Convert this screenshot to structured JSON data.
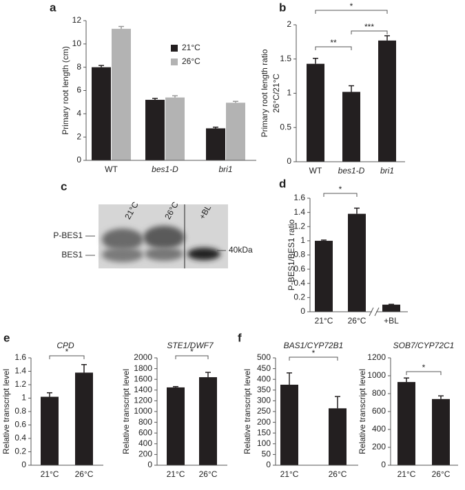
{
  "chart_data": [
    {
      "type": "bar",
      "panel": "a",
      "categories": [
        "WT",
        "bes1-D",
        "bri1"
      ],
      "series": [
        {
          "name": "21°C",
          "color": "#231f20",
          "values": [
            8.0,
            5.2,
            2.75
          ],
          "errors": [
            0.15,
            0.12,
            0.1
          ]
        },
        {
          "name": "26°C",
          "color": "#b3b3b3",
          "values": [
            11.3,
            5.4,
            4.95
          ],
          "errors": [
            0.2,
            0.15,
            0.12
          ]
        }
      ],
      "ylabel": [
        "Primary root length (cm)"
      ],
      "ylim": [
        0,
        12
      ],
      "yticks": [
        0,
        2,
        4,
        6,
        8,
        10,
        12
      ],
      "legend": "upper right"
    },
    {
      "type": "bar",
      "panel": "b",
      "categories": [
        "WT",
        "bes1-D",
        "bri1"
      ],
      "color": "#231f20",
      "values": [
        1.43,
        1.02,
        1.77
      ],
      "errors": [
        0.08,
        0.09,
        0.07
      ],
      "ylabel": [
        "Primary root length ratio",
        "26°C/21°C"
      ],
      "ylim": [
        0,
        2
      ],
      "yticks": [
        0,
        0.5,
        1,
        1.5,
        2
      ],
      "annotations": [
        {
          "text": "*",
          "between": [
            "WT",
            "bri1"
          ]
        },
        {
          "text": "**",
          "between": [
            "WT",
            "bes1-D"
          ]
        },
        {
          "text": "***",
          "between": [
            "bes1-D",
            "bri1"
          ]
        }
      ]
    },
    {
      "type": "bar",
      "panel": "d",
      "categories": [
        "21°C",
        "26°C",
        "+BL"
      ],
      "color": "#231f20",
      "values": [
        1.0,
        1.38,
        0.1
      ],
      "errors": [
        0.01,
        0.08,
        0.005
      ],
      "axis_break": true,
      "ylabel": [
        "P-BES1/BES1 ratio"
      ],
      "ylim": [
        0,
        1.6
      ],
      "yticks": [
        0,
        0.2,
        0.4,
        0.6,
        0.8,
        1,
        1.2,
        1.4,
        1.6
      ],
      "annotations": [
        {
          "text": "*",
          "between": [
            "21°C",
            "26°C"
          ]
        }
      ]
    },
    {
      "type": "bar",
      "panel": "e",
      "title": "CPD",
      "categories": [
        "21°C",
        "26°C"
      ],
      "color": "#231f20",
      "values": [
        1.02,
        1.38
      ],
      "errors": [
        0.06,
        0.12
      ],
      "ylabel": [
        "Relative transcript level"
      ],
      "ylim": [
        0,
        1.6
      ],
      "yticks": [
        0,
        0.2,
        0.4,
        0.6,
        0.8,
        1,
        1.2,
        1.4,
        1.6
      ],
      "annotations": [
        {
          "text": "*",
          "between": [
            "21°C",
            "26°C"
          ]
        }
      ]
    },
    {
      "type": "bar",
      "title": "STE1/DWF7",
      "categories": [
        "21°C",
        "26°C"
      ],
      "color": "#231f20",
      "values": [
        1450,
        1640
      ],
      "errors": [
        15,
        90
      ],
      "ylabel": [
        "Relative transcript level"
      ],
      "ylim": [
        0,
        2000
      ],
      "yticks": [
        0,
        200,
        400,
        600,
        800,
        1000,
        1200,
        1400,
        1600,
        1800,
        2000
      ],
      "annotations": [
        {
          "text": "*",
          "between": [
            "21°C",
            "26°C"
          ]
        }
      ]
    },
    {
      "type": "bar",
      "panel": "f",
      "title": "BAS1/CYP72B1",
      "categories": [
        "21°C",
        "26°C"
      ],
      "color": "#231f20",
      "values": [
        375,
        265
      ],
      "errors": [
        55,
        55
      ],
      "ylabel": [
        "Relative transcript level"
      ],
      "ylim": [
        0,
        500
      ],
      "yticks": [
        0,
        50,
        100,
        150,
        200,
        250,
        300,
        350,
        400,
        450,
        500
      ],
      "annotations": [
        {
          "text": "*",
          "between": [
            "21°C",
            "26°C"
          ]
        }
      ]
    },
    {
      "type": "bar",
      "title": "SOB7/CYP72C1",
      "categories": [
        "21°C",
        "26°C"
      ],
      "color": "#231f20",
      "values": [
        930,
        740
      ],
      "errors": [
        45,
        35
      ],
      "ylabel": [
        "Relative transcript level"
      ],
      "ylim": [
        0,
        1200
      ],
      "yticks": [
        0,
        200,
        400,
        600,
        800,
        1000,
        1200
      ],
      "annotations": [
        {
          "text": "*",
          "between": [
            "21°C",
            "26°C"
          ]
        }
      ]
    }
  ],
  "blot": {
    "panel": "c",
    "lanes": [
      "21°C",
      "26°C",
      "+BL"
    ],
    "bands": [
      "P-BES1",
      "BES1"
    ],
    "marker": "40kDa"
  }
}
